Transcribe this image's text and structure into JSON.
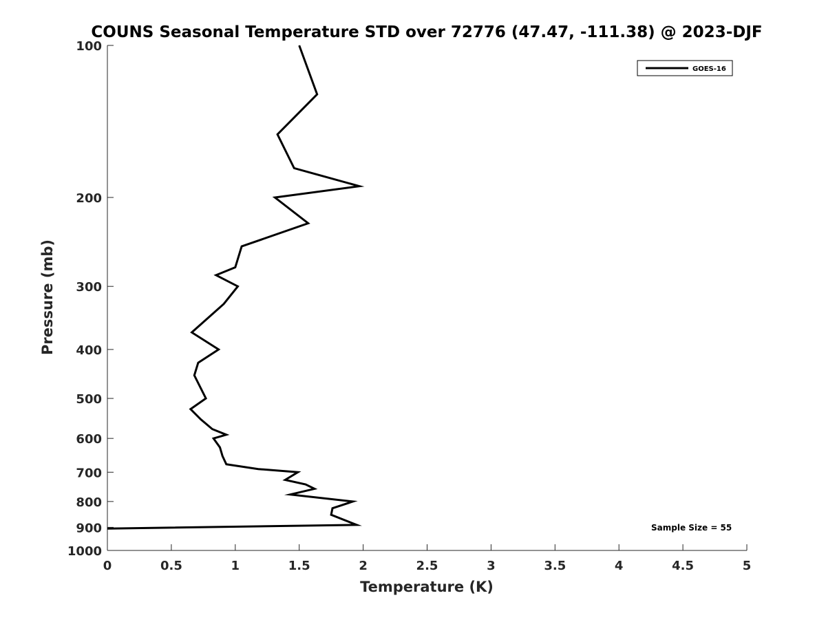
{
  "chart_data": {
    "type": "line",
    "title": "COUNS Seasonal Temperature STD over 72776 (47.47, -111.38) @ 2023-DJF",
    "xlabel": "Temperature (K)",
    "ylabel": "Pressure (mb)",
    "xlim": [
      0,
      5
    ],
    "ylim": [
      100,
      1000
    ],
    "y_scale": "log",
    "y_reversed": true,
    "x_ticks": [
      "0",
      "0.5",
      "1",
      "1.5",
      "2",
      "2.5",
      "3",
      "3.5",
      "4",
      "4.5",
      "5"
    ],
    "y_ticks": [
      "100",
      "200",
      "300",
      "400",
      "500",
      "600",
      "700",
      "800",
      "900",
      "1000"
    ],
    "grid": false,
    "legend_position": "top-right",
    "annotation": "Sample Size = 55",
    "series": [
      {
        "name": "GOES-16",
        "color": "#000000",
        "points": [
          {
            "x": 1.5,
            "y": 100
          },
          {
            "x": 1.64,
            "y": 125
          },
          {
            "x": 1.33,
            "y": 150
          },
          {
            "x": 1.46,
            "y": 175
          },
          {
            "x": 1.97,
            "y": 190
          },
          {
            "x": 1.31,
            "y": 200
          },
          {
            "x": 1.57,
            "y": 225
          },
          {
            "x": 1.05,
            "y": 250
          },
          {
            "x": 1.0,
            "y": 275
          },
          {
            "x": 0.85,
            "y": 285
          },
          {
            "x": 1.02,
            "y": 300
          },
          {
            "x": 0.91,
            "y": 325
          },
          {
            "x": 0.66,
            "y": 370
          },
          {
            "x": 0.87,
            "y": 400
          },
          {
            "x": 0.71,
            "y": 425
          },
          {
            "x": 0.68,
            "y": 450
          },
          {
            "x": 0.77,
            "y": 500
          },
          {
            "x": 0.65,
            "y": 525
          },
          {
            "x": 0.73,
            "y": 550
          },
          {
            "x": 0.82,
            "y": 575
          },
          {
            "x": 0.93,
            "y": 590
          },
          {
            "x": 0.83,
            "y": 600
          },
          {
            "x": 0.88,
            "y": 625
          },
          {
            "x": 0.9,
            "y": 650
          },
          {
            "x": 0.93,
            "y": 675
          },
          {
            "x": 1.18,
            "y": 690
          },
          {
            "x": 1.49,
            "y": 700
          },
          {
            "x": 1.39,
            "y": 725
          },
          {
            "x": 1.55,
            "y": 740
          },
          {
            "x": 1.62,
            "y": 755
          },
          {
            "x": 1.43,
            "y": 775
          },
          {
            "x": 1.92,
            "y": 800
          },
          {
            "x": 1.76,
            "y": 825
          },
          {
            "x": 1.75,
            "y": 850
          },
          {
            "x": 1.95,
            "y": 890
          },
          {
            "x": 0.0,
            "y": 905
          }
        ]
      }
    ]
  }
}
